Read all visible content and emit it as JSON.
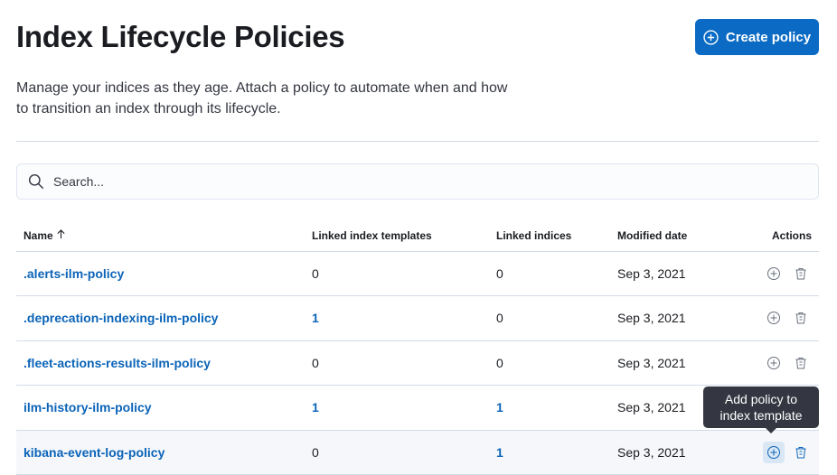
{
  "header": {
    "title": "Index Lifecycle Policies",
    "create_label": "Create policy",
    "description": "Manage your indices as they age. Attach a policy to automate when and how to transition an index through its lifecycle."
  },
  "search": {
    "placeholder": "Search..."
  },
  "table": {
    "columns": [
      "Name",
      "Linked index templates",
      "Linked indices",
      "Modified date",
      "Actions"
    ],
    "sort": "Name ascending",
    "rows": [
      {
        "name": ".alerts-ilm-policy",
        "templates": "0",
        "indices": "0",
        "date": "Sep 3, 2021"
      },
      {
        "name": ".deprecation-indexing-ilm-policy",
        "templates": "1",
        "indices": "0",
        "date": "Sep 3, 2021"
      },
      {
        "name": ".fleet-actions-results-ilm-policy",
        "templates": "0",
        "indices": "0",
        "date": "Sep 3, 2021"
      },
      {
        "name": "ilm-history-ilm-policy",
        "templates": "1",
        "indices": "1",
        "date": "Sep 3, 2021"
      },
      {
        "name": "kibana-event-log-policy",
        "templates": "0",
        "indices": "1",
        "date": "Sep 3, 2021"
      }
    ]
  },
  "tooltip": "Add policy to index template",
  "colors": {
    "primary": "#0a6ac4",
    "link": "#0b64b8",
    "tooltip": "#343741"
  }
}
